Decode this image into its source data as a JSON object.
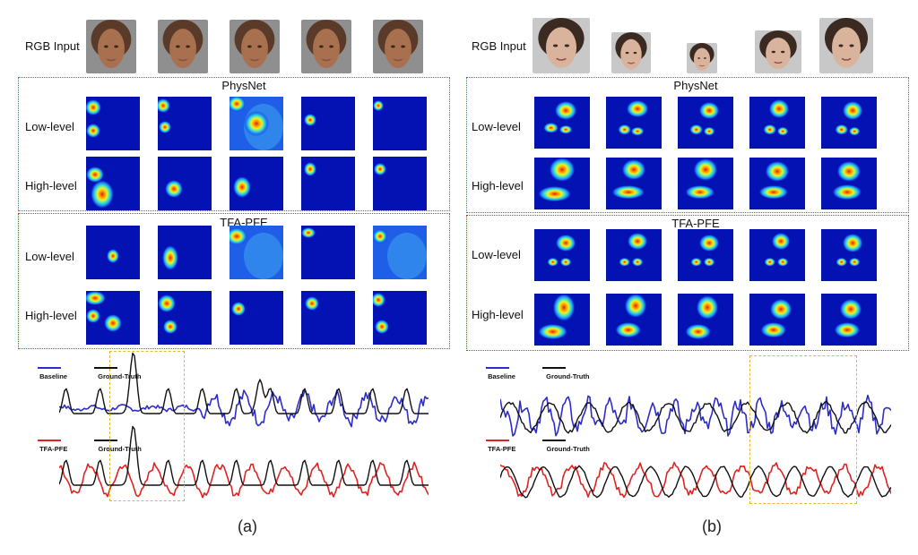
{
  "panels": [
    {
      "caption": "(a)",
      "rgb_label": "RGB Input",
      "physnet": {
        "title": "PhysNet",
        "rows": [
          "Low-level",
          "High-level"
        ]
      },
      "tfa": {
        "title": "TFA-PFE",
        "rows": [
          "Low-level",
          "High-level"
        ]
      },
      "signal_top": {
        "legend": [
          "Baseline",
          "Ground-Truth"
        ]
      },
      "signal_bottom": {
        "legend": [
          "TFA-PFE",
          "Ground-Truth"
        ]
      }
    },
    {
      "caption": "(b)",
      "rgb_label": "RGB Input",
      "physnet": {
        "title": "PhysNet",
        "rows": [
          "Low-level",
          "High-level"
        ]
      },
      "tfa": {
        "title": "TFA-PFE",
        "rows": [
          "Low-level",
          "High-level"
        ]
      },
      "signal_top": {
        "legend": [
          "Baseline",
          "Ground-Truth"
        ]
      },
      "signal_bottom": {
        "legend": [
          "TFA-PFE",
          "Ground-Truth"
        ]
      }
    }
  ],
  "colors": {
    "physnet_box": "#3b6fb0",
    "tfa_box": "#c0392b",
    "highlight_box": "#e6b82e",
    "baseline_line": "#2d2dc8",
    "tfa_line": "#e02424",
    "ground_truth_line": "#111111"
  }
}
